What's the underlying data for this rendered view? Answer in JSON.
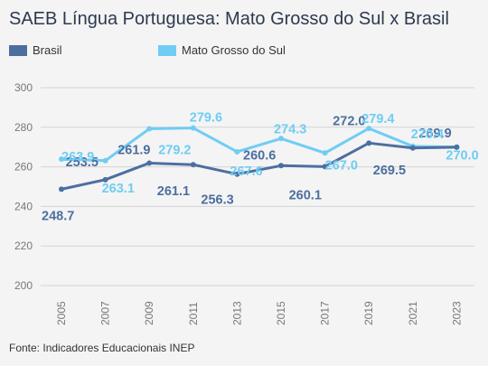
{
  "chart_data": {
    "type": "line",
    "title": "SAEB Língua Portuguesa: Mato Grosso do Sul x Brasil",
    "categories": [
      "2005",
      "2007",
      "2009",
      "2011",
      "2013",
      "2015",
      "2017",
      "2019",
      "2021",
      "2023"
    ],
    "series": [
      {
        "name": "Brasil",
        "color": "#4c6fa0",
        "values": [
          248.7,
          253.5,
          261.9,
          261.1,
          256.3,
          260.6,
          260.1,
          272.0,
          269.5,
          269.9
        ],
        "labels": [
          "248.7",
          "253.5",
          "261.9",
          "261.1",
          "256.3",
          "260.6",
          "260.1",
          "272.0",
          "269.5",
          "269.9"
        ]
      },
      {
        "name": "Mato Grosso do Sul",
        "color": "#6fcdf4",
        "values": [
          263.9,
          263.1,
          279.2,
          279.6,
          267.6,
          274.3,
          267.0,
          279.4,
          270.4,
          270.0
        ],
        "labels": [
          "263.9",
          "263.1",
          "279.2",
          "279.6",
          "267.6",
          "274.3",
          "267.0",
          "279.4",
          "270.4",
          "270.0"
        ]
      }
    ],
    "ylim": [
      200,
      300
    ],
    "yticks": [
      200,
      220,
      240,
      260,
      280,
      300
    ],
    "grid": true,
    "legend": "top-left",
    "source": "Fonte: Indicadores Educacionais INEP"
  }
}
